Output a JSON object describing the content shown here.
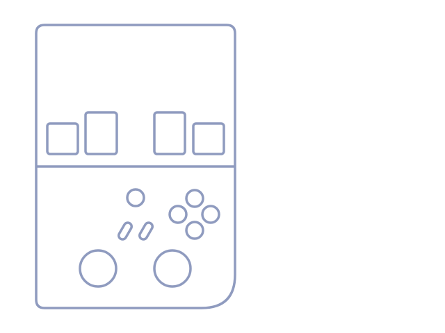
{
  "diagram": {
    "stroke_color": "#8f9bbf",
    "background_color": "#ffffff",
    "shoulder_buttons": [
      "l2-trigger",
      "l1-bumper",
      "r1-bumper",
      "r2-trigger"
    ],
    "face_buttons": [
      "face-button-top",
      "face-button-left",
      "face-button-right",
      "face-button-bottom"
    ],
    "system_buttons": [
      "home-button",
      "select-button",
      "start-button"
    ],
    "analog_sticks": [
      "left-analog-stick",
      "right-analog-stick"
    ]
  }
}
